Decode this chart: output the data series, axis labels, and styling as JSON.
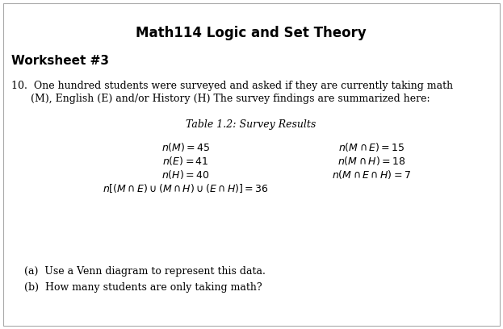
{
  "title": "Math114 Logic and Set Theory",
  "worksheet": "Worksheet #3",
  "prob_line1": "10.  One hundred students were surveyed and asked if they are currently taking math",
  "prob_line2": "      (M), English (E) and/or History (H) The survey findings are summarized here:",
  "table_title": "Table 1.2: Survey Results",
  "left_rows": [
    "$n(M) = 45$",
    "$n(E) = 41$",
    "$n(H) = 40$",
    "$n[(M\\cap E)\\cup(M\\cap H)\\cup(E\\cap H)] = 36$"
  ],
  "right_rows": [
    "$n(M\\cap E) = 15$",
    "$n(M\\cap H) = 18$",
    "$n(M\\cap E\\cap H) = 7$"
  ],
  "qa": "(a)  Use a Venn diagram to represent this data.",
  "qb": "(b)  How many students are only taking math?",
  "bg_color": "#ffffff",
  "border_color": "#aaaaaa",
  "title_fs": 12,
  "ws_fs": 11,
  "body_fs": 9,
  "table_title_fs": 9,
  "data_fs": 9,
  "q_fs": 9
}
